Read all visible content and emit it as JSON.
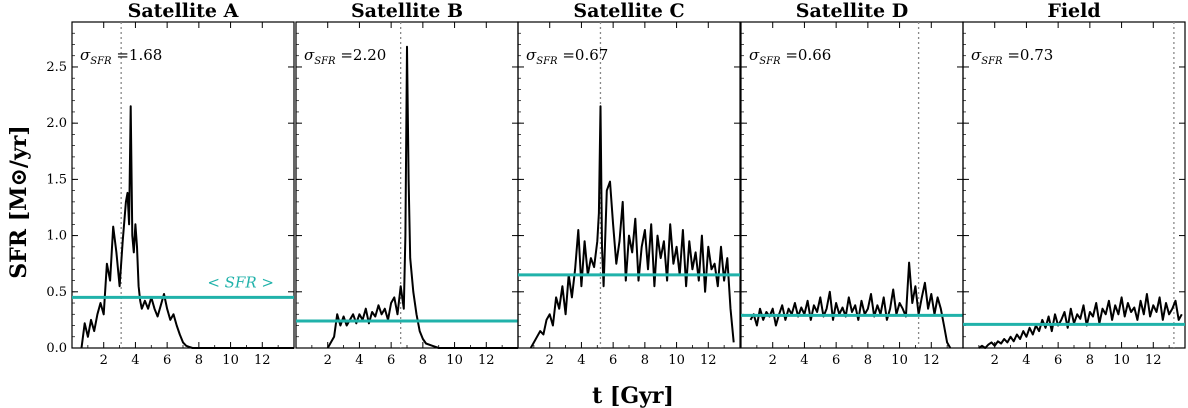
{
  "chart_data": {
    "type": "line",
    "ylabel": "SFR [M⊙/yr]",
    "xlabel": "t [Gyr]",
    "xlim": [
      0,
      14
    ],
    "ylim": [
      0,
      2.9
    ],
    "x_ticks": [
      2,
      4,
      6,
      8,
      10,
      12
    ],
    "y_ticks": [
      0.0,
      0.5,
      1.0,
      1.5,
      2.0,
      2.5
    ],
    "y_tick_labels": [
      "0.0",
      "0.5",
      "1.0",
      "1.5",
      "2.0",
      "2.5"
    ],
    "grid": false,
    "colors": {
      "sfr": "#000000",
      "mean": "#20b2aa",
      "marker": "#888888"
    },
    "mean_label": "< SFR >",
    "sigma_symbol": "σ",
    "sigma_subscript": "SFR",
    "panels": [
      {
        "title": "Satellite A",
        "sigma_value": "=1.68",
        "mean": 0.45,
        "vline": 3.1,
        "show_mean_label": true,
        "series": {
          "x": [
            0.6,
            0.8,
            1.0,
            1.2,
            1.4,
            1.6,
            1.8,
            2.0,
            2.2,
            2.4,
            2.6,
            2.8,
            3.0,
            3.2,
            3.4,
            3.5,
            3.6,
            3.7,
            3.8,
            3.9,
            4.0,
            4.1,
            4.2,
            4.3,
            4.4,
            4.6,
            4.8,
            5.0,
            5.2,
            5.4,
            5.6,
            5.8,
            6.0,
            6.2,
            6.4,
            6.6,
            6.8,
            7.0,
            7.2,
            7.4,
            7.6,
            7.8,
            8.0,
            9.0,
            10.0,
            12.0,
            14.0
          ],
          "y": [
            0.0,
            0.22,
            0.1,
            0.25,
            0.15,
            0.3,
            0.4,
            0.3,
            0.75,
            0.6,
            1.08,
            0.85,
            0.55,
            0.95,
            1.3,
            1.38,
            1.1,
            2.15,
            1.0,
            0.85,
            1.1,
            0.9,
            0.55,
            0.42,
            0.35,
            0.42,
            0.35,
            0.45,
            0.35,
            0.28,
            0.38,
            0.48,
            0.35,
            0.25,
            0.3,
            0.2,
            0.12,
            0.05,
            0.02,
            0.01,
            0.0,
            0.0,
            0.0,
            0.0,
            0.0,
            0.0,
            0.0
          ]
        }
      },
      {
        "title": "Satellite B",
        "sigma_value": "=2.20",
        "mean": 0.24,
        "vline": 6.6,
        "show_mean_label": false,
        "series": {
          "x": [
            2.0,
            2.2,
            2.4,
            2.6,
            2.8,
            3.0,
            3.2,
            3.4,
            3.6,
            3.8,
            4.0,
            4.2,
            4.4,
            4.6,
            4.8,
            5.0,
            5.2,
            5.4,
            5.6,
            5.8,
            6.0,
            6.2,
            6.4,
            6.6,
            6.8,
            6.9,
            7.0,
            7.1,
            7.2,
            7.4,
            7.6,
            7.8,
            8.0,
            8.2,
            8.6,
            9.0,
            10.0,
            12.0,
            14.0
          ],
          "y": [
            0.0,
            0.05,
            0.1,
            0.3,
            0.2,
            0.28,
            0.2,
            0.25,
            0.3,
            0.22,
            0.3,
            0.25,
            0.35,
            0.22,
            0.32,
            0.28,
            0.38,
            0.3,
            0.35,
            0.25,
            0.4,
            0.45,
            0.3,
            0.55,
            0.35,
            1.0,
            2.68,
            1.5,
            0.8,
            0.5,
            0.3,
            0.15,
            0.08,
            0.04,
            0.02,
            0.0,
            0.0,
            0.0,
            0.0
          ]
        }
      },
      {
        "title": "Satellite C",
        "sigma_value": "=0.67",
        "mean": 0.65,
        "vline": 5.2,
        "show_mean_label": false,
        "series": {
          "x": [
            0.8,
            1.0,
            1.2,
            1.4,
            1.6,
            1.8,
            2.0,
            2.2,
            2.4,
            2.6,
            2.8,
            3.0,
            3.2,
            3.4,
            3.6,
            3.8,
            4.0,
            4.2,
            4.4,
            4.6,
            4.8,
            5.0,
            5.1,
            5.2,
            5.3,
            5.4,
            5.6,
            5.8,
            6.0,
            6.2,
            6.4,
            6.6,
            6.8,
            7.0,
            7.2,
            7.4,
            7.6,
            7.8,
            8.0,
            8.2,
            8.4,
            8.6,
            8.8,
            9.0,
            9.2,
            9.4,
            9.6,
            9.8,
            10.0,
            10.2,
            10.4,
            10.6,
            10.8,
            11.0,
            11.2,
            11.4,
            11.6,
            11.8,
            12.0,
            12.2,
            12.4,
            12.6,
            12.8,
            13.0,
            13.2,
            13.4,
            13.6
          ],
          "y": [
            0.0,
            0.05,
            0.1,
            0.15,
            0.12,
            0.25,
            0.3,
            0.2,
            0.45,
            0.35,
            0.55,
            0.3,
            0.65,
            0.45,
            0.7,
            1.05,
            0.55,
            0.95,
            0.65,
            0.8,
            0.72,
            0.95,
            1.2,
            2.15,
            0.9,
            0.55,
            1.4,
            1.48,
            1.1,
            0.75,
            0.95,
            1.3,
            0.6,
            1.0,
            0.85,
            1.15,
            0.6,
            0.9,
            1.05,
            0.7,
            1.1,
            0.55,
            1.0,
            0.8,
            0.95,
            0.6,
            1.1,
            0.75,
            0.9,
            0.65,
            1.05,
            0.55,
            0.95,
            0.7,
            0.85,
            0.6,
            1.0,
            0.5,
            0.9,
            0.7,
            0.75,
            0.55,
            0.9,
            0.6,
            0.8,
            0.35,
            0.05
          ]
        }
      },
      {
        "title": "Satellite D",
        "sigma_value": "=0.66",
        "mean": 0.29,
        "vline": 11.2,
        "show_mean_label": false,
        "series": {
          "x": [
            0.6,
            0.8,
            1.0,
            1.2,
            1.4,
            1.6,
            1.8,
            2.0,
            2.2,
            2.4,
            2.6,
            2.8,
            3.0,
            3.2,
            3.4,
            3.6,
            3.8,
            4.0,
            4.2,
            4.4,
            4.6,
            4.8,
            5.0,
            5.2,
            5.4,
            5.6,
            5.8,
            6.0,
            6.2,
            6.4,
            6.6,
            6.8,
            7.0,
            7.2,
            7.4,
            7.6,
            7.8,
            8.0,
            8.2,
            8.4,
            8.6,
            8.8,
            9.0,
            9.2,
            9.4,
            9.6,
            9.8,
            10.0,
            10.2,
            10.4,
            10.6,
            10.8,
            11.0,
            11.2,
            11.4,
            11.6,
            11.8,
            12.0,
            12.2,
            12.4,
            12.6,
            12.8,
            13.0,
            13.2
          ],
          "y": [
            0.25,
            0.3,
            0.2,
            0.35,
            0.25,
            0.32,
            0.28,
            0.35,
            0.2,
            0.3,
            0.38,
            0.25,
            0.35,
            0.3,
            0.4,
            0.28,
            0.36,
            0.3,
            0.42,
            0.25,
            0.38,
            0.32,
            0.45,
            0.28,
            0.35,
            0.5,
            0.25,
            0.4,
            0.3,
            0.36,
            0.28,
            0.45,
            0.32,
            0.38,
            0.25,
            0.42,
            0.3,
            0.35,
            0.48,
            0.28,
            0.38,
            0.3,
            0.45,
            0.25,
            0.35,
            0.52,
            0.3,
            0.4,
            0.35,
            0.28,
            0.76,
            0.4,
            0.55,
            0.3,
            0.45,
            0.58,
            0.35,
            0.48,
            0.3,
            0.45,
            0.35,
            0.2,
            0.05,
            0.0
          ]
        }
      },
      {
        "title": "Field",
        "sigma_value": "=0.73",
        "mean": 0.21,
        "vline": 13.3,
        "show_mean_label": false,
        "series": {
          "x": [
            1.0,
            1.2,
            1.4,
            1.6,
            1.8,
            2.0,
            2.2,
            2.4,
            2.6,
            2.8,
            3.0,
            3.2,
            3.4,
            3.6,
            3.8,
            4.0,
            4.2,
            4.4,
            4.6,
            4.8,
            5.0,
            5.2,
            5.4,
            5.6,
            5.8,
            6.0,
            6.2,
            6.4,
            6.6,
            6.8,
            7.0,
            7.2,
            7.4,
            7.6,
            7.8,
            8.0,
            8.2,
            8.4,
            8.6,
            8.8,
            9.0,
            9.2,
            9.4,
            9.6,
            9.8,
            10.0,
            10.2,
            10.4,
            10.6,
            10.8,
            11.0,
            11.2,
            11.4,
            11.6,
            11.8,
            12.0,
            12.2,
            12.4,
            12.6,
            12.8,
            13.0,
            13.2,
            13.4,
            13.6,
            13.8
          ],
          "y": [
            0.0,
            0.02,
            0.0,
            0.03,
            0.05,
            0.02,
            0.06,
            0.04,
            0.08,
            0.05,
            0.1,
            0.06,
            0.12,
            0.08,
            0.15,
            0.1,
            0.18,
            0.12,
            0.2,
            0.15,
            0.25,
            0.18,
            0.28,
            0.15,
            0.3,
            0.2,
            0.25,
            0.32,
            0.18,
            0.35,
            0.22,
            0.3,
            0.26,
            0.38,
            0.2,
            0.32,
            0.28,
            0.4,
            0.22,
            0.35,
            0.3,
            0.42,
            0.25,
            0.38,
            0.3,
            0.45,
            0.28,
            0.4,
            0.32,
            0.36,
            0.25,
            0.42,
            0.3,
            0.48,
            0.28,
            0.38,
            0.32,
            0.45,
            0.25,
            0.4,
            0.3,
            0.35,
            0.42,
            0.25,
            0.3
          ]
        }
      }
    ]
  }
}
